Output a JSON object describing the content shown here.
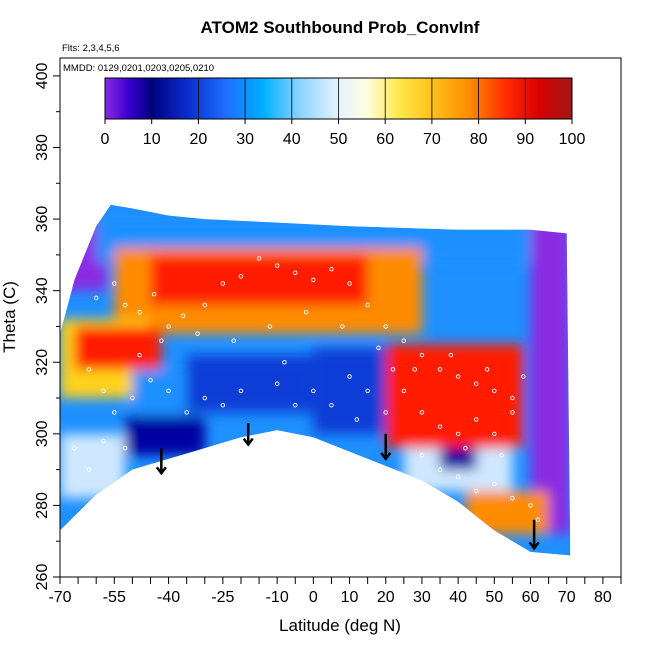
{
  "chart_data": {
    "type": "heatmap",
    "title": "ATOM2 Southbound Prob_ConvInf",
    "annotations": [
      "Flts: 2,3,4,5,6",
      "MMDD: 0129,0201,0203,0205,0210"
    ],
    "xlabel": "Latitude (deg N)",
    "ylabel": "Theta (C)",
    "xlim": [
      -70,
      85
    ],
    "ylim": [
      260,
      405
    ],
    "x_ticks": [
      -70,
      -55,
      -40,
      -25,
      -10,
      0,
      10,
      20,
      30,
      40,
      50,
      60,
      70,
      80
    ],
    "x_ticks_minor": [
      -65,
      -60,
      -50,
      -45,
      -35,
      -30,
      -20,
      -15,
      -5,
      5,
      15,
      25,
      35,
      45,
      55,
      65,
      75,
      85
    ],
    "y_ticks": [
      260,
      280,
      300,
      320,
      340,
      360,
      380,
      400
    ],
    "y_ticks_minor": [
      270,
      290,
      310,
      330,
      350,
      370,
      390
    ],
    "colorbar": {
      "min": 0,
      "max": 100,
      "step": 10,
      "labels": [
        "0",
        "10",
        "20",
        "30",
        "40",
        "50",
        "60",
        "70",
        "80",
        "90",
        "100"
      ],
      "colors": [
        "#8a2be2",
        "#0000a0",
        "#0a3dd6",
        "#1e90ff",
        "#00bfff",
        "#cfe8ff",
        "#fffdc8",
        "#ffd21e",
        "#ff8c00",
        "#ff1a00",
        "#a01818"
      ]
    },
    "envelope_top": [
      [
        -70,
        328
      ],
      [
        -66,
        343
      ],
      [
        -60,
        358
      ],
      [
        -56,
        364
      ],
      [
        -50,
        363
      ],
      [
        -40,
        361
      ],
      [
        -30,
        360
      ],
      [
        -10,
        359
      ],
      [
        10,
        358
      ],
      [
        40,
        357
      ],
      [
        60,
        357
      ],
      [
        70,
        356
      ]
    ],
    "envelope_bottom": [
      [
        -70,
        273
      ],
      [
        -60,
        283
      ],
      [
        -50,
        290
      ],
      [
        -40,
        293
      ],
      [
        -30,
        296
      ],
      [
        -20,
        299
      ],
      [
        -10,
        301
      ],
      [
        0,
        299
      ],
      [
        10,
        295
      ],
      [
        20,
        291
      ],
      [
        30,
        287
      ],
      [
        40,
        281
      ],
      [
        50,
        273
      ],
      [
        60,
        267
      ],
      [
        71,
        266
      ]
    ],
    "regions": [
      {
        "x": [
          -70,
          -57
        ],
        "y": [
          340,
          360
        ],
        "prob": 5
      },
      {
        "x": [
          -60,
          68
        ],
        "y": [
          348,
          360
        ],
        "prob": 32
      },
      {
        "x": [
          60,
          71
        ],
        "y": [
          272,
          360
        ],
        "prob": 8
      },
      {
        "x": [
          -55,
          30
        ],
        "y": [
          328,
          352
        ],
        "prob": 84
      },
      {
        "x": [
          -45,
          15
        ],
        "y": [
          336,
          350
        ],
        "prob": 95
      },
      {
        "x": [
          -70,
          -45
        ],
        "y": [
          310,
          332
        ],
        "prob": 78
      },
      {
        "x": [
          -50,
          -30
        ],
        "y": [
          300,
          318
        ],
        "prob": 38
      },
      {
        "x": [
          -35,
          0
        ],
        "y": [
          306,
          322
        ],
        "prob": 28
      },
      {
        "x": [
          0,
          25
        ],
        "y": [
          300,
          324
        ],
        "prob": 22
      },
      {
        "x": [
          20,
          58
        ],
        "y": [
          296,
          325
        ],
        "prob": 96
      },
      {
        "x": [
          -70,
          -52
        ],
        "y": [
          282,
          300
        ],
        "prob": 58
      },
      {
        "x": [
          -52,
          -30
        ],
        "y": [
          294,
          305
        ],
        "prob": 12
      },
      {
        "x": [
          25,
          55
        ],
        "y": [
          284,
          296
        ],
        "prob": 55
      },
      {
        "x": [
          35,
          45
        ],
        "y": [
          290,
          296
        ],
        "prob": 18
      },
      {
        "x": [
          42,
          65
        ],
        "y": [
          272,
          284
        ],
        "prob": 88
      },
      {
        "x": [
          -66,
          -42
        ],
        "y": [
          318,
          330
        ],
        "prob": 94
      }
    ],
    "arrows": [
      {
        "lat": -42,
        "theta_top": 296,
        "theta_tip": 289
      },
      {
        "lat": -18,
        "theta_top": 303,
        "theta_tip": 297
      },
      {
        "lat": 20,
        "theta_top": 300,
        "theta_tip": 293
      },
      {
        "lat": 61,
        "theta_top": 276,
        "theta_tip": 268
      }
    ],
    "observations": [
      [
        -60,
        338
      ],
      [
        -55,
        342
      ],
      [
        -52,
        336
      ],
      [
        -48,
        334
      ],
      [
        -44,
        339
      ],
      [
        -40,
        330
      ],
      [
        -36,
        333
      ],
      [
        -30,
        336
      ],
      [
        -25,
        342
      ],
      [
        -20,
        344
      ],
      [
        -15,
        349
      ],
      [
        -10,
        347
      ],
      [
        -5,
        345
      ],
      [
        0,
        343
      ],
      [
        5,
        346
      ],
      [
        10,
        342
      ],
      [
        15,
        336
      ],
      [
        20,
        330
      ],
      [
        25,
        326
      ],
      [
        30,
        322
      ],
      [
        35,
        318
      ],
      [
        40,
        316
      ],
      [
        45,
        314
      ],
      [
        50,
        312
      ],
      [
        55,
        310
      ],
      [
        -62,
        318
      ],
      [
        -58,
        312
      ],
      [
        -55,
        306
      ],
      [
        -50,
        310
      ],
      [
        -45,
        315
      ],
      [
        -40,
        312
      ],
      [
        -35,
        306
      ],
      [
        -30,
        310
      ],
      [
        -25,
        308
      ],
      [
        -20,
        312
      ],
      [
        -10,
        314
      ],
      [
        -5,
        308
      ],
      [
        0,
        312
      ],
      [
        5,
        308
      ],
      [
        10,
        316
      ],
      [
        15,
        312
      ],
      [
        20,
        306
      ],
      [
        25,
        312
      ],
      [
        30,
        306
      ],
      [
        35,
        302
      ],
      [
        40,
        300
      ],
      [
        45,
        304
      ],
      [
        50,
        300
      ],
      [
        55,
        306
      ],
      [
        -66,
        296
      ],
      [
        -62,
        290
      ],
      [
        -58,
        298
      ],
      [
        -52,
        296
      ],
      [
        30,
        294
      ],
      [
        35,
        290
      ],
      [
        40,
        288
      ],
      [
        45,
        284
      ],
      [
        50,
        286
      ],
      [
        55,
        282
      ],
      [
        60,
        280
      ],
      [
        62,
        276
      ],
      [
        -48,
        322
      ],
      [
        -42,
        326
      ],
      [
        -32,
        328
      ],
      [
        -22,
        326
      ],
      [
        -12,
        330
      ],
      [
        -2,
        334
      ],
      [
        8,
        330
      ],
      [
        18,
        324
      ],
      [
        28,
        318
      ],
      [
        38,
        322
      ],
      [
        48,
        318
      ],
      [
        58,
        316
      ],
      [
        -8,
        320
      ],
      [
        12,
        304
      ],
      [
        22,
        318
      ],
      [
        42,
        296
      ],
      [
        52,
        294
      ]
    ]
  }
}
